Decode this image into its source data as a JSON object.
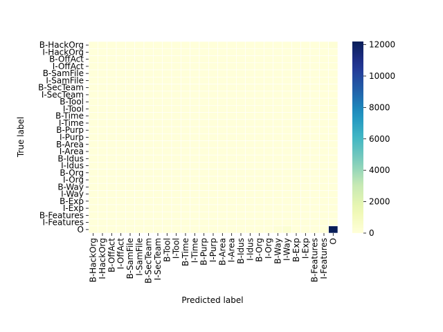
{
  "chart_data": {
    "type": "heatmap",
    "title": "",
    "xlabel": "Predicted label",
    "ylabel": "True label",
    "labels": [
      "B-HackOrg",
      "I-HackOrg",
      "B-OffAct",
      "I-OffAct",
      "B-SamFile",
      "I-SamFile",
      "B-SecTeam",
      "I-SecTeam",
      "B-Tool",
      "I-Tool",
      "B-Time",
      "I-Time",
      "B-Purp",
      "I-Purp",
      "B-Area",
      "I-Area",
      "B-Idus",
      "I-Idus",
      "B-Org",
      "I-Org",
      "B-Way",
      "I-Way",
      "B-Exp",
      "I-Exp",
      "B-Features",
      "I-Features",
      "O"
    ],
    "cells": [
      {
        "row": "O",
        "col": "O",
        "value": 12200
      },
      {
        "row": "O",
        "col": "I-Way",
        "value": 300
      },
      {
        "row": "O",
        "col": "B-Way",
        "value": 150
      },
      {
        "row": "B-HackOrg",
        "col": "O",
        "value": 150
      },
      {
        "row": "B-Tool",
        "col": "O",
        "value": 60
      },
      {
        "row": "I-Tool",
        "col": "O",
        "value": 60
      }
    ],
    "default_value": 0,
    "colorbar": {
      "colormap": "YlGnBu",
      "range": [
        0,
        12200
      ],
      "ticks": [
        0,
        2000,
        4000,
        6000,
        8000,
        10000,
        12000
      ]
    },
    "grid": true
  }
}
